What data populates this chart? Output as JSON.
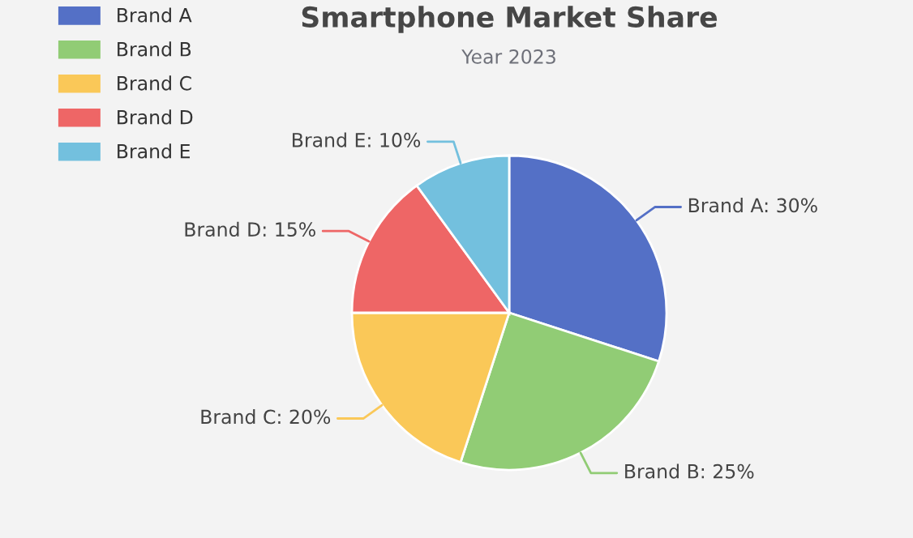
{
  "chart_data": {
    "type": "pie",
    "title": "Smartphone Market Share",
    "subtitle": "Year 2023",
    "categories": [
      "Brand A",
      "Brand B",
      "Brand C",
      "Brand D",
      "Brand E"
    ],
    "values": [
      30,
      25,
      20,
      15,
      10
    ],
    "colors": [
      "#5470c6",
      "#91cc75",
      "#fac858",
      "#ee6666",
      "#73c0de"
    ],
    "value_labels": [
      "Brand A: 30%",
      "Brand B: 25%",
      "Brand C: 20%",
      "Brand D: 15%",
      "Brand E: 10%"
    ],
    "legend": "top left"
  }
}
